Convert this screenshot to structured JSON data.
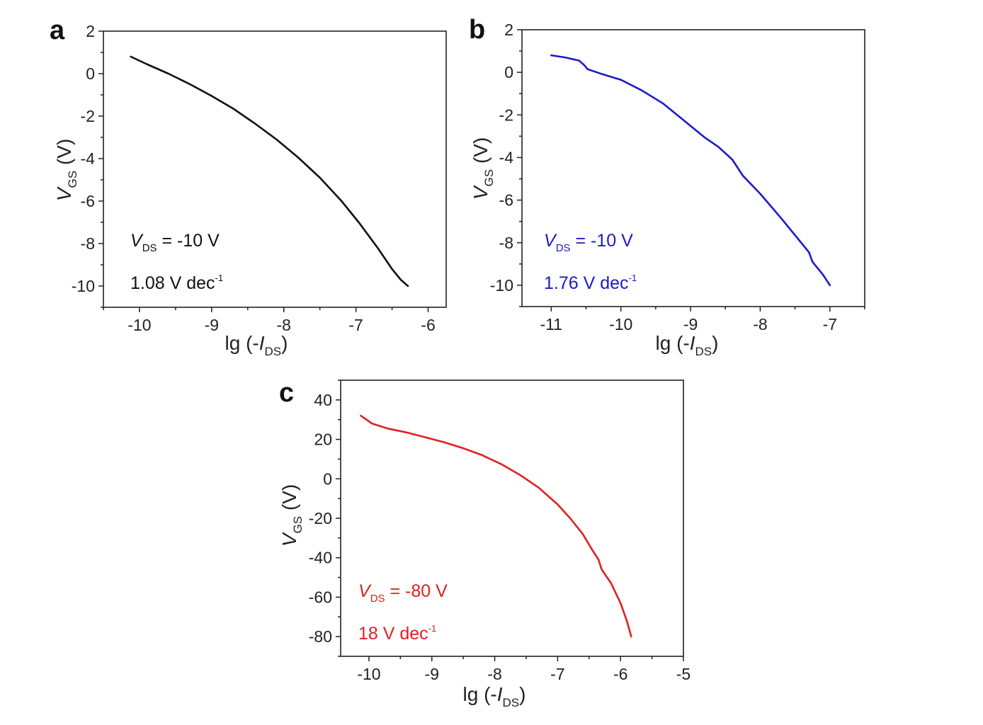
{
  "chart_data": [
    {
      "type": "line",
      "panel_letter": "a",
      "color": "#111111",
      "xlim": [
        -10.5,
        -5.75
      ],
      "ylim": [
        -11,
        2
      ],
      "xticks": [
        -10,
        -9,
        -8,
        -7,
        -6
      ],
      "xticklabels": [
        "-10",
        "-9",
        "-8",
        "-7",
        "-6"
      ],
      "yticks": [
        2,
        0,
        -2,
        -4,
        -6,
        -8,
        -10
      ],
      "yticklabels": [
        "2",
        "0",
        "-2",
        "-4",
        "-6",
        "-8",
        "-10"
      ],
      "xlabel": {
        "main": "lg (-",
        "italic": "I",
        "sub": "DS",
        "close": ")"
      },
      "ylabel": {
        "italic": "V",
        "sub": "GS",
        "unit": "(V)"
      },
      "annotations": {
        "line1": {
          "italic": "V",
          "sub": "DS",
          "rest": " = -10 V"
        },
        "line2": {
          "value": "1.08 V dec",
          "sup": "-1"
        }
      },
      "series": [
        {
          "name": "VGS vs lg(-IDS)",
          "x": [
            -10.12,
            -9.9,
            -9.6,
            -9.3,
            -9.0,
            -8.7,
            -8.4,
            -8.1,
            -7.8,
            -7.5,
            -7.2,
            -6.95,
            -6.7,
            -6.5,
            -6.38,
            -6.28
          ],
          "y": [
            0.8,
            0.45,
            0.0,
            -0.5,
            -1.05,
            -1.65,
            -2.35,
            -3.1,
            -3.95,
            -4.9,
            -6.0,
            -7.05,
            -8.2,
            -9.2,
            -9.7,
            -10.0
          ]
        }
      ]
    },
    {
      "type": "line",
      "panel_letter": "b",
      "color": "#1a1acc",
      "xlim": [
        -11.42,
        -6.5
      ],
      "ylim": [
        -11,
        2
      ],
      "xticks": [
        -11,
        -10,
        -9,
        -8,
        -7
      ],
      "xticklabels": [
        "-11",
        "-10",
        "-9",
        "-8",
        "-7"
      ],
      "yticks": [
        2,
        0,
        -2,
        -4,
        -6,
        -8,
        -10
      ],
      "yticklabels": [
        "2",
        "0",
        "-2",
        "-4",
        "-6",
        "-8",
        "-10"
      ],
      "xlabel": {
        "main": "lg (-",
        "italic": "I",
        "sub": "DS",
        "close": ")"
      },
      "ylabel": {
        "italic": "V",
        "sub": "GS",
        "unit": "(V)"
      },
      "annotations": {
        "line1": {
          "italic": "V",
          "sub": "DS",
          "rest": " = -10 V"
        },
        "line2": {
          "value": "1.76 V dec",
          "sup": "-1"
        }
      },
      "series": [
        {
          "name": "VGS vs lg(-IDS)",
          "x": [
            -11.0,
            -10.8,
            -10.6,
            -10.53,
            -10.48,
            -10.3,
            -10.0,
            -9.7,
            -9.4,
            -9.1,
            -8.8,
            -8.6,
            -8.4,
            -8.3,
            -8.25,
            -8.0,
            -7.7,
            -7.4,
            -7.3,
            -7.25,
            -7.1,
            -7.0
          ],
          "y": [
            0.8,
            0.7,
            0.55,
            0.35,
            0.15,
            -0.05,
            -0.35,
            -0.85,
            -1.45,
            -2.25,
            -3.05,
            -3.5,
            -4.1,
            -4.6,
            -4.85,
            -5.7,
            -6.85,
            -8.05,
            -8.45,
            -8.9,
            -9.5,
            -10.0
          ]
        }
      ]
    },
    {
      "type": "line",
      "panel_letter": "c",
      "color": "#e02020",
      "xlim": [
        -10.45,
        -5.0
      ],
      "ylim": [
        -90,
        50
      ],
      "xticks": [
        -10,
        -9,
        -8,
        -7,
        -6,
        -5
      ],
      "xticklabels": [
        "-10",
        "-9",
        "-8",
        "-7",
        "-6",
        "-5"
      ],
      "yticks": [
        40,
        20,
        0,
        -20,
        -40,
        -60,
        -80
      ],
      "yticklabels": [
        "40",
        "20",
        "0",
        "-20",
        "-40",
        "-60",
        "-80"
      ],
      "xlabel": {
        "main": "lg (-",
        "italic": "I",
        "sub": "DS",
        "close": ")"
      },
      "ylabel": {
        "italic": "V",
        "sub": "GS",
        "unit": "(V)"
      },
      "annotations": {
        "line1": {
          "italic": "V",
          "sub": "DS",
          "rest": " = -80 V"
        },
        "line2": {
          "value": "18 V dec",
          "sup": "-1"
        }
      },
      "series": [
        {
          "name": "VGS vs lg(-IDS)",
          "x": [
            -10.13,
            -9.95,
            -9.7,
            -9.4,
            -9.1,
            -8.8,
            -8.5,
            -8.2,
            -7.9,
            -7.6,
            -7.3,
            -7.0,
            -6.8,
            -6.6,
            -6.45,
            -6.35,
            -6.3,
            -6.15,
            -6.0,
            -5.9,
            -5.83
          ],
          "y": [
            32,
            28,
            25.5,
            23.5,
            21,
            18.5,
            15.5,
            12,
            7.5,
            2,
            -4.5,
            -13,
            -20,
            -28,
            -36,
            -41,
            -46,
            -53,
            -63,
            -72,
            -80
          ]
        }
      ]
    }
  ]
}
